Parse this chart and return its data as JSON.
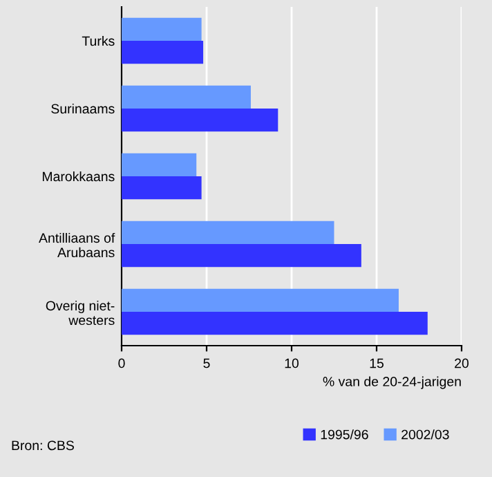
{
  "chart_data": {
    "type": "bar",
    "orientation": "horizontal",
    "categories": [
      "Turks",
      "Surinaams",
      "Marokkaans",
      "Antilliaans of\nArubaans",
      "Overig niet-\nwesters"
    ],
    "series": [
      {
        "name": "1995/96",
        "color": "#3333ff",
        "values": [
          4.8,
          9.2,
          4.7,
          14.1,
          18.0
        ]
      },
      {
        "name": "2002/03",
        "color": "#6699ff",
        "values": [
          4.7,
          7.6,
          4.4,
          12.5,
          16.3
        ]
      }
    ],
    "xlim": [
      0,
      20
    ],
    "xticks": [
      0,
      5,
      10,
      15,
      20
    ],
    "xlabel": "% van de 20-24-jarigen",
    "grid": "x",
    "legend": "bottom",
    "annotations": [
      "Bron: CBS"
    ]
  }
}
